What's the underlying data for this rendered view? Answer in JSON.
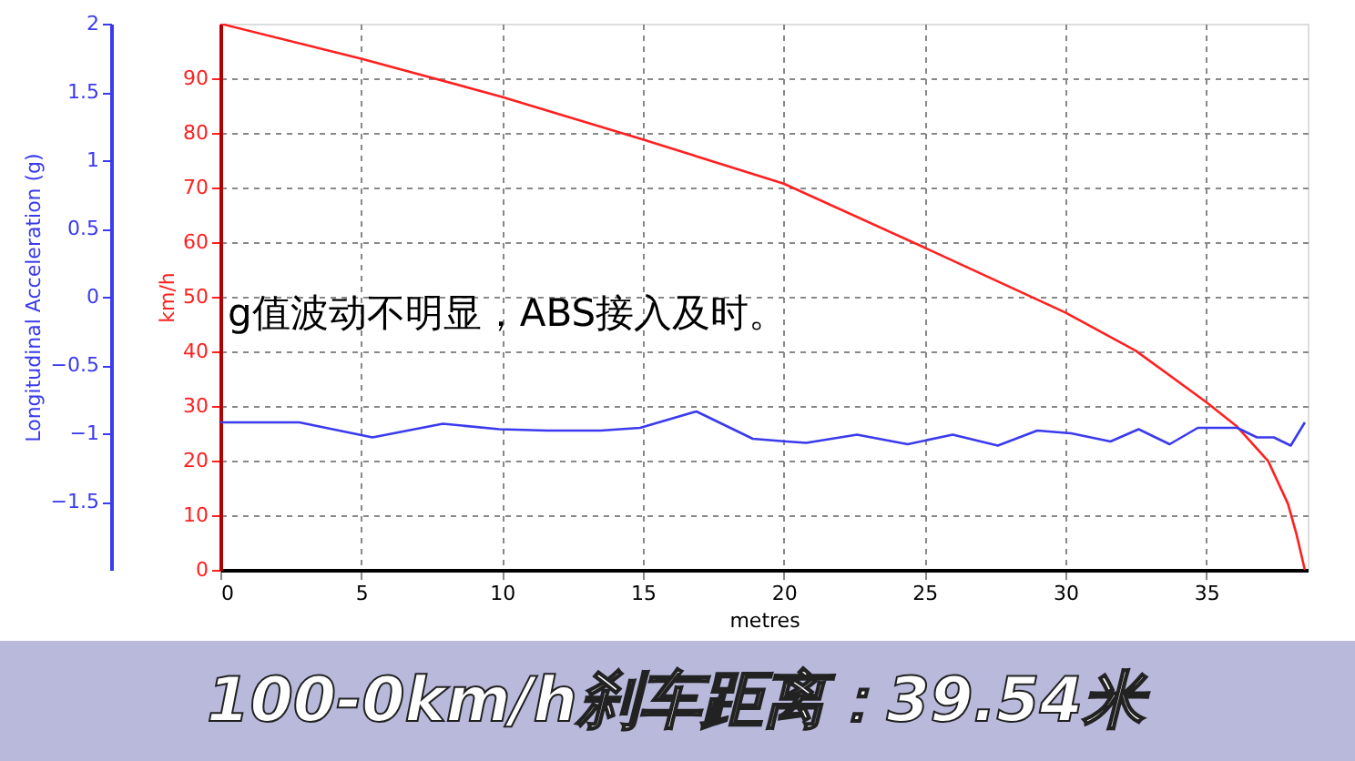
{
  "chart_data": {
    "type": "line",
    "title": "100-0km/h刹车距离：39.54米",
    "xlabel": "metres",
    "ylabel": "km/h",
    "y2label": "Longitudinal Acceleration (g)",
    "annotations": [
      "g值波动不明显，ABS接入及时。"
    ],
    "series": [
      {
        "axis": "y",
        "color": "#ff2020",
        "x": [
          0,
          5,
          10,
          15,
          20,
          25,
          30,
          32.5,
          35,
          36.1,
          37.2,
          37.9,
          38.2,
          38.5
        ],
        "values": [
          100,
          93.6,
          86.6,
          78.8,
          70.7,
          59,
          47.1,
          40.1,
          30.7,
          26.2,
          19.9,
          12.1,
          6.6,
          0
        ]
      },
      {
        "axis": "y2",
        "color": "#3a3aee",
        "x": [
          0,
          2.8,
          5.4,
          7.9,
          9.9,
          11.6,
          13.5,
          14.9,
          16.9,
          18.9,
          20.1,
          20.8,
          22.6,
          24.4,
          26.0,
          27.6,
          29.0,
          30.2,
          31.6,
          32.6,
          33.7,
          34.7,
          36.1,
          36.8,
          37.4,
          38.0,
          38.5
        ],
        "values": [
          -0.92,
          -0.92,
          -1.03,
          -0.93,
          -0.97,
          -0.98,
          -0.98,
          -0.96,
          -0.84,
          -1.04,
          -1.06,
          -1.07,
          -1.01,
          -1.08,
          -1.01,
          -1.09,
          -0.98,
          -1.0,
          -1.06,
          -0.97,
          -1.08,
          -0.96,
          -0.96,
          -1.03,
          -1.03,
          -1.09,
          -0.92
        ]
      }
    ],
    "xlim": [
      0,
      38.6
    ],
    "xticks": [
      0,
      5,
      10,
      15,
      20,
      25,
      30,
      35
    ],
    "ylim": [
      0,
      100
    ],
    "yticks": [
      0,
      10,
      20,
      30,
      40,
      50,
      60,
      70,
      80,
      90
    ],
    "y2lim": [
      -2,
      2
    ],
    "y2ticks": [
      -1.5,
      -1,
      -0.5,
      0,
      0.5,
      1,
      1.5,
      2
    ],
    "grid": true,
    "legend": false
  }
}
